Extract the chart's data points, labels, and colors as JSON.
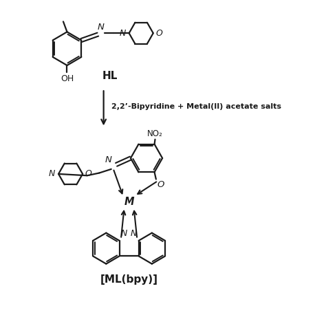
{
  "background_color": "#ffffff",
  "line_color": "#1a1a1a",
  "line_width": 1.6,
  "text_color": "#1a1a1a",
  "HL_label": "HL",
  "arrow_label": "2,2’-Bipyridine + Metal(II) acetate salts",
  "product_label": "[ML(bpy)]",
  "NO2_label": "NO₂",
  "OH_label": "OH",
  "N_label": "N",
  "O_label": "O",
  "M_label": "M",
  "figsize": [
    4.74,
    4.74
  ],
  "dpi": 100
}
